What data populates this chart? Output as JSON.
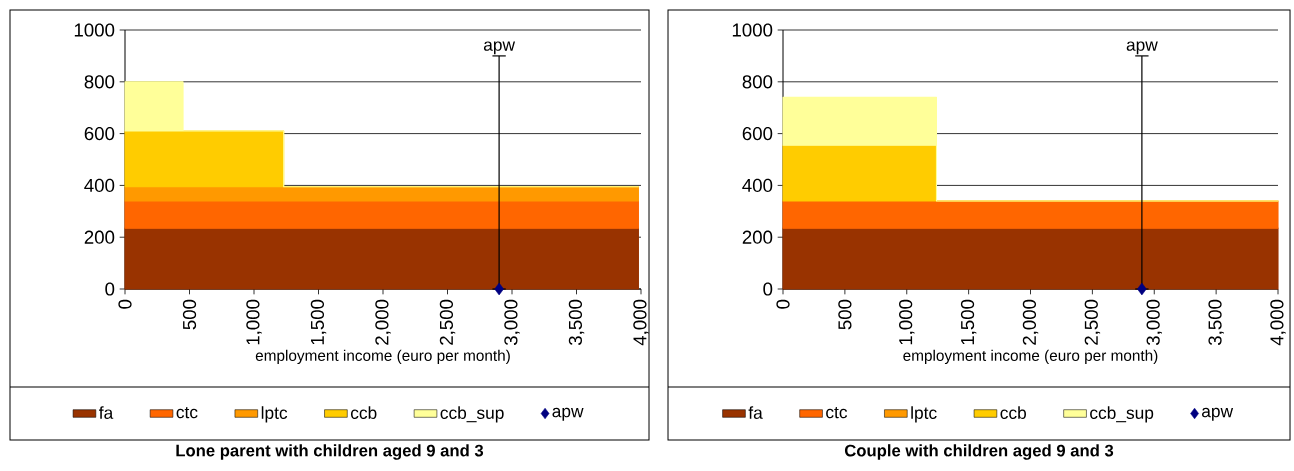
{
  "chart_data": [
    {
      "type": "area",
      "stacked": true,
      "title": "Lone parent with children aged 9 and 3",
      "xlabel": "employment income (euro per month)",
      "x": [
        0,
        450,
        1230,
        3980
      ],
      "series": [
        {
          "name": "fa",
          "color": "#993300",
          "values": [
            235,
            235,
            235,
            235
          ]
        },
        {
          "name": "ctc",
          "color": "#ff6600",
          "values": [
            105,
            105,
            105,
            105
          ]
        },
        {
          "name": "lptc",
          "color": "#ff9900",
          "values": [
            55,
            55,
            55,
            55
          ]
        },
        {
          "name": "ccb",
          "color": "#ffcc00",
          "values": [
            215,
            215,
            0,
            0
          ]
        },
        {
          "name": "ccb_sup",
          "color": "#ffff99",
          "values": [
            190,
            0,
            0,
            0
          ]
        },
        {
          "name": "apw",
          "type": "scatter",
          "color": "#000080",
          "x": [
            2900
          ],
          "values": [
            0
          ],
          "errors": [
            [
              0,
              900
            ]
          ],
          "marker": "diamond"
        }
      ],
      "annotations": [
        {
          "text": "apw",
          "x": 2900,
          "y": 900
        }
      ],
      "xlim": [
        0,
        4000
      ],
      "xticks": [
        0,
        500,
        {
          "value": 1000,
          "label": "1,000"
        },
        {
          "value": 1500,
          "label": "1,500"
        },
        {
          "value": 2000,
          "label": "2,000"
        },
        {
          "value": 2500,
          "label": "2,500"
        },
        {
          "value": 3000,
          "label": "3,000"
        },
        {
          "value": 3500,
          "label": "3,500"
        },
        {
          "value": 4000,
          "label": "4,000"
        }
      ],
      "ylim": [
        0,
        1000
      ],
      "yticks": [
        0,
        200,
        400,
        600,
        800,
        1000
      ],
      "grid": "y",
      "legend": "bottom"
    },
    {
      "type": "area",
      "stacked": true,
      "title": "Couple with children aged 9 and 3",
      "xlabel": "employment income (euro per month)",
      "x": [
        0,
        1240,
        4000
      ],
      "series": [
        {
          "name": "fa",
          "color": "#993300",
          "values": [
            235,
            235,
            235
          ]
        },
        {
          "name": "ctc",
          "color": "#ff6600",
          "values": [
            105,
            105,
            105
          ]
        },
        {
          "name": "lptc",
          "color": "#ff9900",
          "values": [
            null,
            null,
            null
          ]
        },
        {
          "name": "ccb",
          "color": "#ffcc00",
          "values": [
            215,
            0,
            0
          ]
        },
        {
          "name": "ccb_sup",
          "color": "#ffff99",
          "values": [
            185,
            0,
            0
          ]
        },
        {
          "name": "apw",
          "type": "scatter",
          "color": "#000080",
          "x": [
            2900
          ],
          "values": [
            0
          ],
          "errors": [
            [
              0,
              900
            ]
          ],
          "marker": "diamond"
        }
      ],
      "annotations": [
        {
          "text": "apw",
          "x": 2900,
          "y": 900
        }
      ],
      "xlim": [
        0,
        4000
      ],
      "xticks": [
        0,
        500,
        {
          "value": 1000,
          "label": "1,000"
        },
        {
          "value": 1500,
          "label": "1,500"
        },
        {
          "value": 2000,
          "label": "2,000"
        },
        {
          "value": 2500,
          "label": "2,500"
        },
        {
          "value": 3000,
          "label": "3,000"
        },
        {
          "value": 3500,
          "label": "3,500"
        },
        {
          "value": 4000,
          "label": "4,000"
        }
      ],
      "ylim": [
        0,
        1000
      ],
      "yticks": [
        0,
        200,
        400,
        600,
        800,
        1000
      ],
      "grid": "y",
      "legend": "bottom"
    }
  ]
}
